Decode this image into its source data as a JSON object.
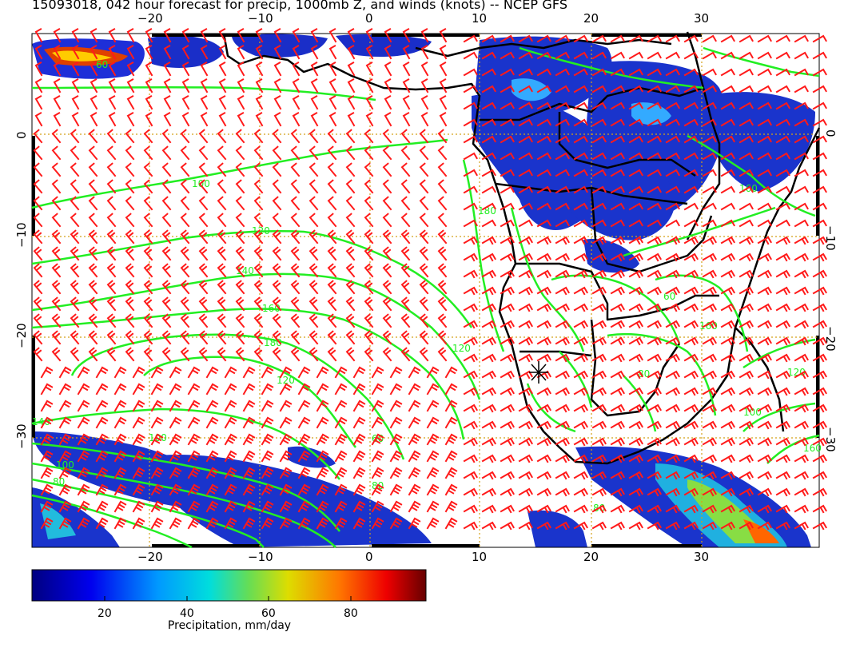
{
  "title": "15093018, 042 hour forecast for precip, 1000mb Z, and winds (knots) -- NCEP GFS",
  "axes": {
    "x_ticks": [
      "−20",
      "−10",
      "0",
      "10",
      "20",
      "30"
    ],
    "y_ticks": [
      "0",
      "−10",
      "−20",
      "−30"
    ]
  },
  "contour_labels": [
    "100",
    "120",
    "140",
    "160",
    "180",
    "120",
    "100",
    "80",
    "140",
    "100",
    "80",
    "60",
    "120",
    "60",
    "160",
    "180",
    "160",
    "80",
    "100",
    "80",
    "60",
    "120",
    "160"
  ],
  "colorbar": {
    "ticks": [
      "20",
      "40",
      "60",
      "80"
    ],
    "label": "Precipitation, mm/day"
  },
  "colors": {
    "contour": "#22ee22",
    "wind_barb": "#ff1a1a",
    "coast": "#000000",
    "grid": "#d4a017"
  },
  "icons": [
    "low-pressure-star-icon"
  ]
}
